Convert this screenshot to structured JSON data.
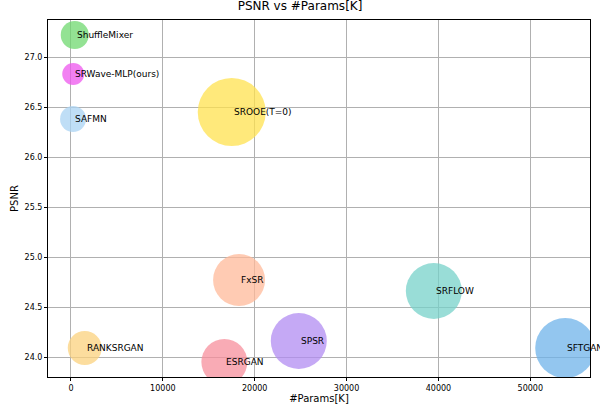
{
  "chart_data": {
    "type": "scatter",
    "marker": "bubble",
    "title": "PSNR vs #Params[K]",
    "x_label": "#Params[K]",
    "y_label": "PSNR",
    "grid": true,
    "xlim": [
      -2500,
      56500
    ],
    "xticks": [
      0,
      10000,
      20000,
      30000,
      40000,
      50000
    ],
    "ylim": [
      23.8,
      27.37
    ],
    "yticks": [
      {
        "value": 24,
        "label": "24.0"
      },
      {
        "value": 24.5,
        "label": "24.5"
      },
      {
        "value": 25,
        "label": "25.0"
      },
      {
        "value": 25.5,
        "label": "25.5"
      },
      {
        "value": 26,
        "label": "26.0"
      },
      {
        "value": 26.5,
        "label": "26.5"
      },
      {
        "value": 27,
        "label": "27.0"
      }
    ],
    "labels": [
      "ShuffleMixer",
      "SRWave-MLP(ours)",
      "SAFMN",
      "SROOE(T=0)",
      "FxSR",
      "SRFLOW",
      "RANKSRGAN",
      "ESRGAN",
      "SPSR",
      "SFTGAN"
    ],
    "x": [
      411,
      250,
      228,
      17500,
      18300,
      39500,
      1500,
      16700,
      24800,
      53800
    ],
    "values": [
      27.22,
      26.83,
      26.38,
      26.45,
      24.77,
      24.66,
      24.09,
      23.95,
      24.16,
      24.09
    ],
    "sizes": [
      28,
      22,
      26,
      68,
      52,
      56,
      34,
      46,
      56,
      60
    ],
    "colors": [
      "#6fd86f",
      "#ee55ee",
      "#a9d3f3",
      "#ffe14f",
      "#ffb999",
      "#77d2ca",
      "#fbd27e",
      "#f78f9c",
      "#b28cf2",
      "#6fb3ea"
    ]
  }
}
